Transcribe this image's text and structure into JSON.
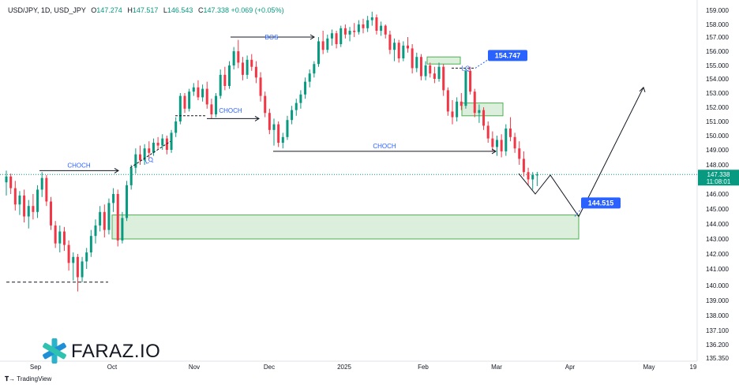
{
  "header": {
    "symbol": "USD/JPY, 1D, USD_JPY",
    "open_label": "O",
    "open": "147.274",
    "high_label": "H",
    "high": "147.517",
    "low_label": "L",
    "low": "146.543",
    "close_label": "C",
    "close": "147.338",
    "change": "+0.069 (+0.05%)"
  },
  "brand": {
    "name": "FARAZ.IO",
    "platform": "TradingView"
  },
  "chart_data": {
    "type": "candlestick",
    "y_axis_ticks": [
      "159.000",
      "158.000",
      "157.000",
      "156.000",
      "155.000",
      "154.000",
      "153.000",
      "152.000",
      "151.000",
      "150.000",
      "149.000",
      "148.000",
      "146.000",
      "145.000",
      "144.000",
      "143.000",
      "142.000",
      "141.000",
      "140.000",
      "139.000",
      "138.000",
      "137.100",
      "136.200",
      "135.350"
    ],
    "x_axis_ticks": [
      "Sep",
      "Oct",
      "Nov",
      "Dec",
      "2025",
      "Feb",
      "Mar",
      "Apr",
      "May",
      "19"
    ],
    "ylim": [
      135.35,
      159.0
    ],
    "last_price": "147.338",
    "countdown": "11:08:01",
    "price_labels": [
      "154.747",
      "144.515"
    ],
    "annotations": [
      "CHOCH",
      "LQ",
      "CHOCH",
      "BOS",
      "CHOCH",
      "LQ"
    ],
    "zones": [
      {
        "name": "demand zone",
        "y_low": 143.0,
        "y_high": 144.6,
        "from": "Oct",
        "to": "Apr"
      },
      {
        "name": "supply zone 1",
        "y_low": 155.1,
        "y_high": 155.6,
        "from": "Feb",
        "to": "Feb"
      },
      {
        "name": "supply zone 2",
        "y_low": 151.4,
        "y_high": 152.3,
        "from": "Feb",
        "to": "Mar"
      }
    ],
    "candles": [
      [
        146.8,
        147.6,
        145.9,
        147.2
      ],
      [
        147.2,
        147.4,
        146.0,
        146.4
      ],
      [
        146.4,
        146.9,
        144.9,
        145.3
      ],
      [
        145.3,
        146.2,
        144.6,
        145.9
      ],
      [
        145.9,
        146.3,
        144.1,
        144.5
      ],
      [
        144.5,
        145.6,
        143.7,
        145.2
      ],
      [
        145.2,
        146.0,
        144.3,
        144.8
      ],
      [
        144.8,
        146.6,
        144.4,
        146.3
      ],
      [
        146.3,
        147.5,
        145.8,
        147.1
      ],
      [
        147.1,
        147.3,
        145.2,
        145.5
      ],
      [
        145.5,
        145.8,
        143.6,
        143.9
      ],
      [
        143.9,
        144.2,
        142.4,
        142.7
      ],
      [
        142.7,
        143.9,
        142.1,
        143.5
      ],
      [
        143.5,
        143.8,
        142.2,
        142.6
      ],
      [
        142.6,
        142.9,
        140.9,
        141.4
      ],
      [
        141.4,
        142.1,
        140.3,
        141.8
      ],
      [
        141.8,
        142.0,
        139.6,
        140.5
      ],
      [
        140.5,
        141.8,
        140.2,
        141.5
      ],
      [
        141.5,
        142.4,
        141.0,
        142.1
      ],
      [
        142.1,
        143.6,
        141.8,
        143.2
      ],
      [
        143.2,
        144.3,
        142.7,
        143.9
      ],
      [
        143.9,
        145.2,
        143.5,
        144.8
      ],
      [
        144.8,
        145.3,
        143.1,
        143.6
      ],
      [
        143.6,
        145.7,
        143.3,
        145.4
      ],
      [
        145.4,
        146.4,
        144.8,
        146.0
      ],
      [
        146.0,
        146.3,
        142.5,
        142.9
      ],
      [
        142.9,
        144.8,
        142.7,
        144.4
      ],
      [
        144.4,
        146.9,
        144.2,
        146.6
      ],
      [
        146.6,
        148.0,
        146.3,
        147.8
      ],
      [
        147.8,
        149.1,
        147.4,
        148.7
      ],
      [
        148.7,
        149.3,
        148.0,
        148.3
      ],
      [
        148.3,
        149.4,
        148.0,
        149.1
      ],
      [
        149.1,
        149.6,
        148.4,
        148.8
      ],
      [
        148.8,
        149.8,
        148.6,
        149.5
      ],
      [
        149.5,
        149.9,
        149.0,
        149.3
      ],
      [
        149.3,
        150.1,
        149.0,
        149.8
      ],
      [
        149.8,
        150.0,
        148.7,
        149.0
      ],
      [
        149.0,
        150.4,
        148.8,
        150.2
      ],
      [
        150.2,
        151.3,
        149.9,
        151.0
      ],
      [
        151.0,
        153.0,
        150.8,
        152.8
      ],
      [
        152.8,
        153.0,
        151.6,
        151.9
      ],
      [
        151.9,
        153.3,
        151.7,
        153.1
      ],
      [
        153.1,
        153.7,
        152.8,
        153.4
      ],
      [
        153.4,
        153.9,
        152.5,
        152.7
      ],
      [
        152.7,
        153.6,
        152.4,
        153.3
      ],
      [
        153.3,
        153.8,
        151.9,
        152.2
      ],
      [
        152.2,
        152.6,
        151.2,
        151.5
      ],
      [
        151.5,
        153.0,
        151.3,
        152.8
      ],
      [
        152.8,
        154.7,
        152.6,
        154.3
      ],
      [
        154.3,
        154.9,
        153.2,
        153.5
      ],
      [
        153.5,
        155.3,
        153.3,
        155.0
      ],
      [
        155.0,
        156.3,
        154.7,
        156.0
      ],
      [
        156.0,
        156.8,
        154.8,
        155.2
      ],
      [
        155.2,
        155.6,
        153.9,
        154.3
      ],
      [
        154.3,
        155.7,
        154.0,
        155.4
      ],
      [
        155.4,
        155.8,
        154.6,
        154.9
      ],
      [
        154.9,
        155.3,
        153.7,
        154.1
      ],
      [
        154.1,
        154.5,
        152.4,
        152.8
      ],
      [
        152.8,
        153.1,
        151.3,
        151.6
      ],
      [
        151.6,
        151.9,
        150.1,
        150.4
      ],
      [
        150.4,
        151.2,
        149.3,
        150.8
      ],
      [
        150.8,
        151.0,
        149.2,
        149.5
      ],
      [
        149.5,
        150.2,
        149.1,
        149.9
      ],
      [
        149.9,
        151.4,
        149.7,
        151.1
      ],
      [
        151.1,
        152.1,
        150.8,
        151.8
      ],
      [
        151.8,
        152.6,
        151.4,
        152.3
      ],
      [
        152.3,
        153.2,
        151.9,
        152.9
      ],
      [
        152.9,
        154.1,
        152.6,
        153.8
      ],
      [
        153.8,
        154.7,
        153.4,
        154.4
      ],
      [
        154.4,
        155.3,
        154.1,
        155.1
      ],
      [
        155.1,
        157.0,
        154.9,
        156.7
      ],
      [
        156.7,
        157.5,
        155.8,
        156.1
      ],
      [
        156.1,
        157.2,
        155.9,
        156.9
      ],
      [
        156.9,
        157.6,
        156.4,
        157.3
      ],
      [
        157.3,
        157.5,
        156.2,
        156.5
      ],
      [
        156.5,
        157.9,
        156.3,
        157.7
      ],
      [
        157.7,
        158.0,
        156.9,
        157.2
      ],
      [
        157.2,
        157.8,
        156.7,
        157.5
      ],
      [
        157.5,
        158.1,
        157.0,
        157.4
      ],
      [
        157.4,
        158.3,
        157.2,
        158.0
      ],
      [
        158.0,
        158.4,
        157.3,
        157.7
      ],
      [
        157.7,
        158.6,
        157.4,
        158.3
      ],
      [
        158.3,
        158.9,
        157.9,
        158.5
      ],
      [
        158.5,
        158.7,
        157.2,
        157.5
      ],
      [
        157.5,
        158.2,
        157.1,
        157.9
      ],
      [
        157.9,
        158.0,
        156.9,
        157.2
      ],
      [
        157.2,
        157.5,
        155.8,
        156.1
      ],
      [
        156.1,
        156.9,
        155.3,
        156.6
      ],
      [
        156.6,
        156.8,
        155.2,
        155.5
      ],
      [
        155.5,
        156.7,
        155.3,
        156.4
      ],
      [
        156.4,
        157.0,
        155.9,
        156.2
      ],
      [
        156.2,
        156.5,
        154.4,
        154.8
      ],
      [
        154.8,
        155.9,
        154.5,
        155.6
      ],
      [
        155.6,
        155.8,
        153.9,
        154.2
      ],
      [
        154.2,
        155.3,
        153.9,
        155.0
      ],
      [
        155.0,
        155.2,
        154.1,
        154.4
      ],
      [
        154.4,
        154.9,
        153.7,
        154.0
      ],
      [
        154.0,
        155.2,
        153.8,
        154.9
      ],
      [
        154.9,
        155.1,
        152.8,
        153.2
      ],
      [
        153.2,
        153.4,
        151.4,
        151.7
      ],
      [
        151.7,
        152.5,
        150.8,
        151.3
      ],
      [
        151.3,
        152.7,
        151.0,
        152.4
      ],
      [
        152.4,
        153.0,
        151.8,
        152.1
      ],
      [
        152.1,
        154.8,
        151.9,
        154.6
      ],
      [
        154.6,
        154.9,
        152.9,
        153.1
      ],
      [
        153.1,
        153.3,
        151.3,
        151.6
      ],
      [
        151.6,
        152.2,
        150.9,
        151.8
      ],
      [
        151.8,
        152.0,
        150.4,
        150.7
      ],
      [
        150.7,
        151.0,
        149.5,
        149.8
      ],
      [
        149.8,
        150.3,
        148.9,
        149.2
      ],
      [
        149.2,
        150.0,
        148.6,
        149.7
      ],
      [
        149.7,
        150.1,
        148.5,
        148.9
      ],
      [
        148.9,
        150.8,
        148.6,
        150.5
      ],
      [
        150.5,
        151.3,
        149.6,
        149.9
      ],
      [
        149.9,
        150.2,
        148.8,
        149.1
      ],
      [
        149.1,
        149.6,
        148.0,
        148.4
      ],
      [
        148.4,
        148.9,
        147.2,
        147.5
      ],
      [
        147.5,
        147.8,
        146.6,
        147.0
      ],
      [
        147.0,
        147.5,
        146.3,
        147.3
      ],
      [
        147.274,
        147.517,
        146.543,
        147.338
      ]
    ],
    "projection_path": [
      147.4,
      146.0,
      147.3,
      144.5,
      146.5,
      153.4
    ]
  }
}
